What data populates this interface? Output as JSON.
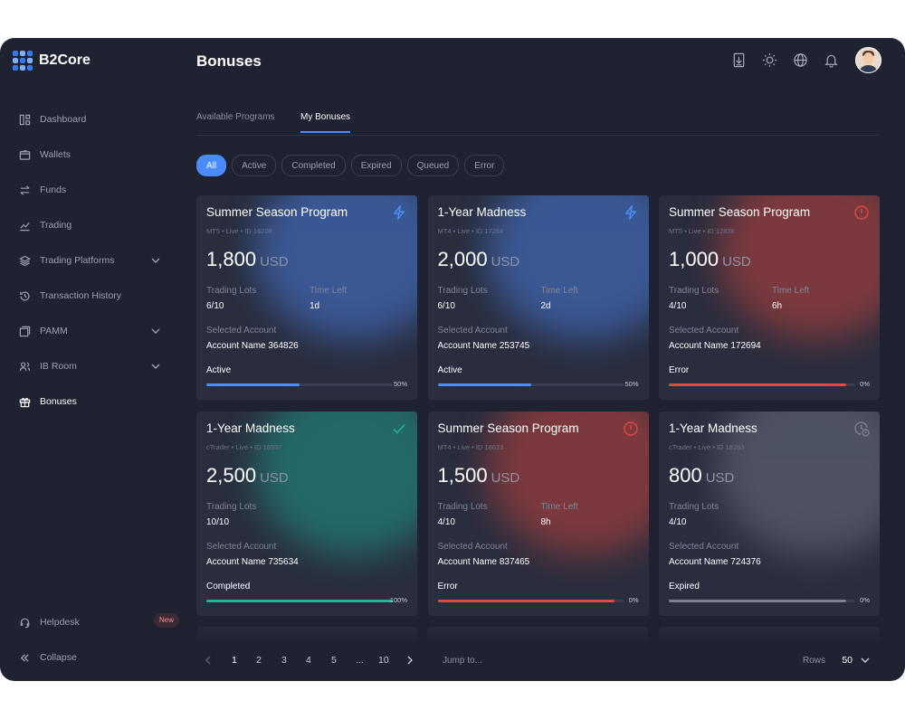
{
  "app": {
    "name": "B2Core"
  },
  "header": {
    "title": "Bonuses"
  },
  "sidebar": {
    "items": [
      {
        "label": "Dashboard",
        "icon": "dashboard-icon"
      },
      {
        "label": "Wallets",
        "icon": "wallet-icon"
      },
      {
        "label": "Funds",
        "icon": "transfer-icon"
      },
      {
        "label": "Trading",
        "icon": "chart-icon"
      },
      {
        "label": "Trading Platforms",
        "icon": "layers-icon"
      },
      {
        "label": "Transaction History",
        "icon": "history-icon"
      },
      {
        "label": "PAMM",
        "icon": "pamm-icon"
      },
      {
        "label": "IB Room",
        "icon": "users-icon"
      },
      {
        "label": "Bonuses",
        "icon": "gift-icon"
      }
    ],
    "helpdesk": {
      "label": "Helpdesk",
      "badge": "New"
    },
    "collapse": {
      "label": "Collapse"
    }
  },
  "tabs": [
    "Available Programs",
    "My Bonuses"
  ],
  "filters": [
    "All",
    "Active",
    "Completed",
    "Expired",
    "Queued",
    "Error"
  ],
  "cards": [
    {
      "title": "Summer Season Program",
      "sub": "MT5 • Live • ID 16208",
      "amount": "1,800",
      "currency": "USD",
      "lots_label": "Trading Lots",
      "lots": "6/10",
      "time_label": "Time Left",
      "time": "1d",
      "account_label": "Selected Account",
      "account": "Account Name 364826",
      "status": "Active",
      "progress": 50,
      "pct": "50%",
      "icon": "lightning-icon",
      "color": "#4f8dff"
    },
    {
      "title": "1-Year Madness",
      "sub": "MT4 • Live • ID 17264",
      "amount": "2,000",
      "currency": "USD",
      "lots_label": "Trading Lots",
      "lots": "6/10",
      "time_label": "Time Left",
      "time": "2d",
      "account_label": "Selected Account",
      "account": "Account Name 253745",
      "status": "Active",
      "progress": 50,
      "pct": "50%",
      "icon": "lightning-icon",
      "color": "#4f8dff"
    },
    {
      "title": "Summer Season Program",
      "sub": "MT5 • Live • ID 12836",
      "amount": "1,000",
      "currency": "USD",
      "lots_label": "Trading Lots",
      "lots": "4/10",
      "time_label": "Time Left",
      "time": "6h",
      "account_label": "Selected Account",
      "account": "Account Name 172694",
      "status": "Error",
      "progress": 95,
      "pct": "0%",
      "icon": "alert-icon",
      "color": "#e0493f"
    },
    {
      "title": "1-Year Madness",
      "sub": "cTrader • Live • ID 16937",
      "amount": "2,500",
      "currency": "USD",
      "lots_label": "Trading Lots",
      "lots": "10/10",
      "time_label": "",
      "time": "",
      "account_label": "Selected Account",
      "account": "Account Name 735634",
      "status": "Completed",
      "progress": 100,
      "pct": "100%",
      "icon": "check-icon",
      "color": "#1fb39a"
    },
    {
      "title": "Summer Season Program",
      "sub": "MT4 • Live • ID 16623",
      "amount": "1,500",
      "currency": "USD",
      "lots_label": "Trading Lots",
      "lots": "4/10",
      "time_label": "Time Left",
      "time": "8h",
      "account_label": "Selected Account",
      "account": "Account Name 837465",
      "status": "Error",
      "progress": 95,
      "pct": "0%",
      "icon": "alert-icon",
      "color": "#e0493f"
    },
    {
      "title": "1-Year Madness",
      "sub": "cTrader • Live • ID 18263",
      "amount": "800",
      "currency": "USD",
      "lots_label": "Trading Lots",
      "lots": "4/10",
      "time_label": "",
      "time": "",
      "account_label": "Selected Account",
      "account": "Account Name 724376",
      "status": "Expired",
      "progress": 95,
      "pct": "0%",
      "icon": "expired-clock-icon",
      "color": "#7b8092"
    }
  ],
  "pagination": {
    "pages": [
      "1",
      "2",
      "3",
      "4",
      "5",
      "...",
      "10"
    ],
    "current": "1",
    "jump_placeholder": "Jump to...",
    "rows_label": "Rows",
    "rows_value": "50"
  }
}
